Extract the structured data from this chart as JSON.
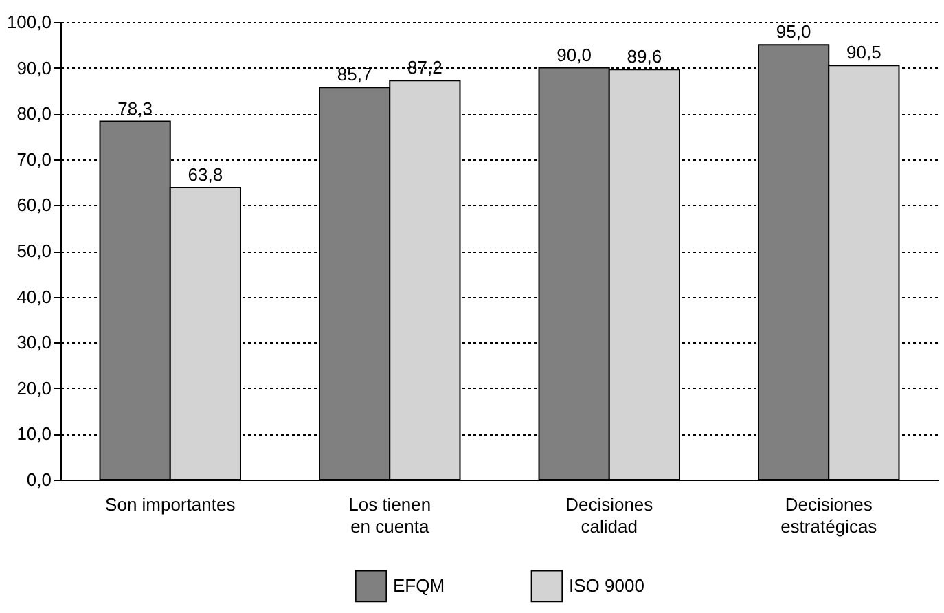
{
  "chart_data": {
    "type": "bar",
    "categories": [
      "Son importantes",
      "Los tienen en cuenta",
      "Decisiones calidad",
      "Decisiones estratégicas"
    ],
    "series": [
      {
        "name": "EFQM",
        "color": "#808080",
        "values": [
          78.3,
          85.7,
          90.0,
          95.0
        ],
        "value_labels": [
          "78,3",
          "85,7",
          "90,0",
          "95,0"
        ]
      },
      {
        "name": "ISO 9000",
        "color": "#d3d3d3",
        "values": [
          63.8,
          87.2,
          89.6,
          90.5
        ],
        "value_labels": [
          "63,8",
          "87,2",
          "89,6",
          "90,5"
        ]
      }
    ],
    "ylim": [
      0,
      100
    ],
    "yticks": [
      {
        "value": 0,
        "label": "0,0"
      },
      {
        "value": 10,
        "label": "10,0"
      },
      {
        "value": 20,
        "label": "20,0"
      },
      {
        "value": 30,
        "label": "30,0"
      },
      {
        "value": 40,
        "label": "40,0"
      },
      {
        "value": 50,
        "label": "50,0"
      },
      {
        "value": 60,
        "label": "60,0"
      },
      {
        "value": 70,
        "label": "70,0"
      },
      {
        "value": 80,
        "label": "80,0"
      },
      {
        "value": 90,
        "label": "90,0"
      },
      {
        "value": 100,
        "label": "100,0"
      }
    ],
    "grid": "y",
    "legend": "bottom"
  }
}
